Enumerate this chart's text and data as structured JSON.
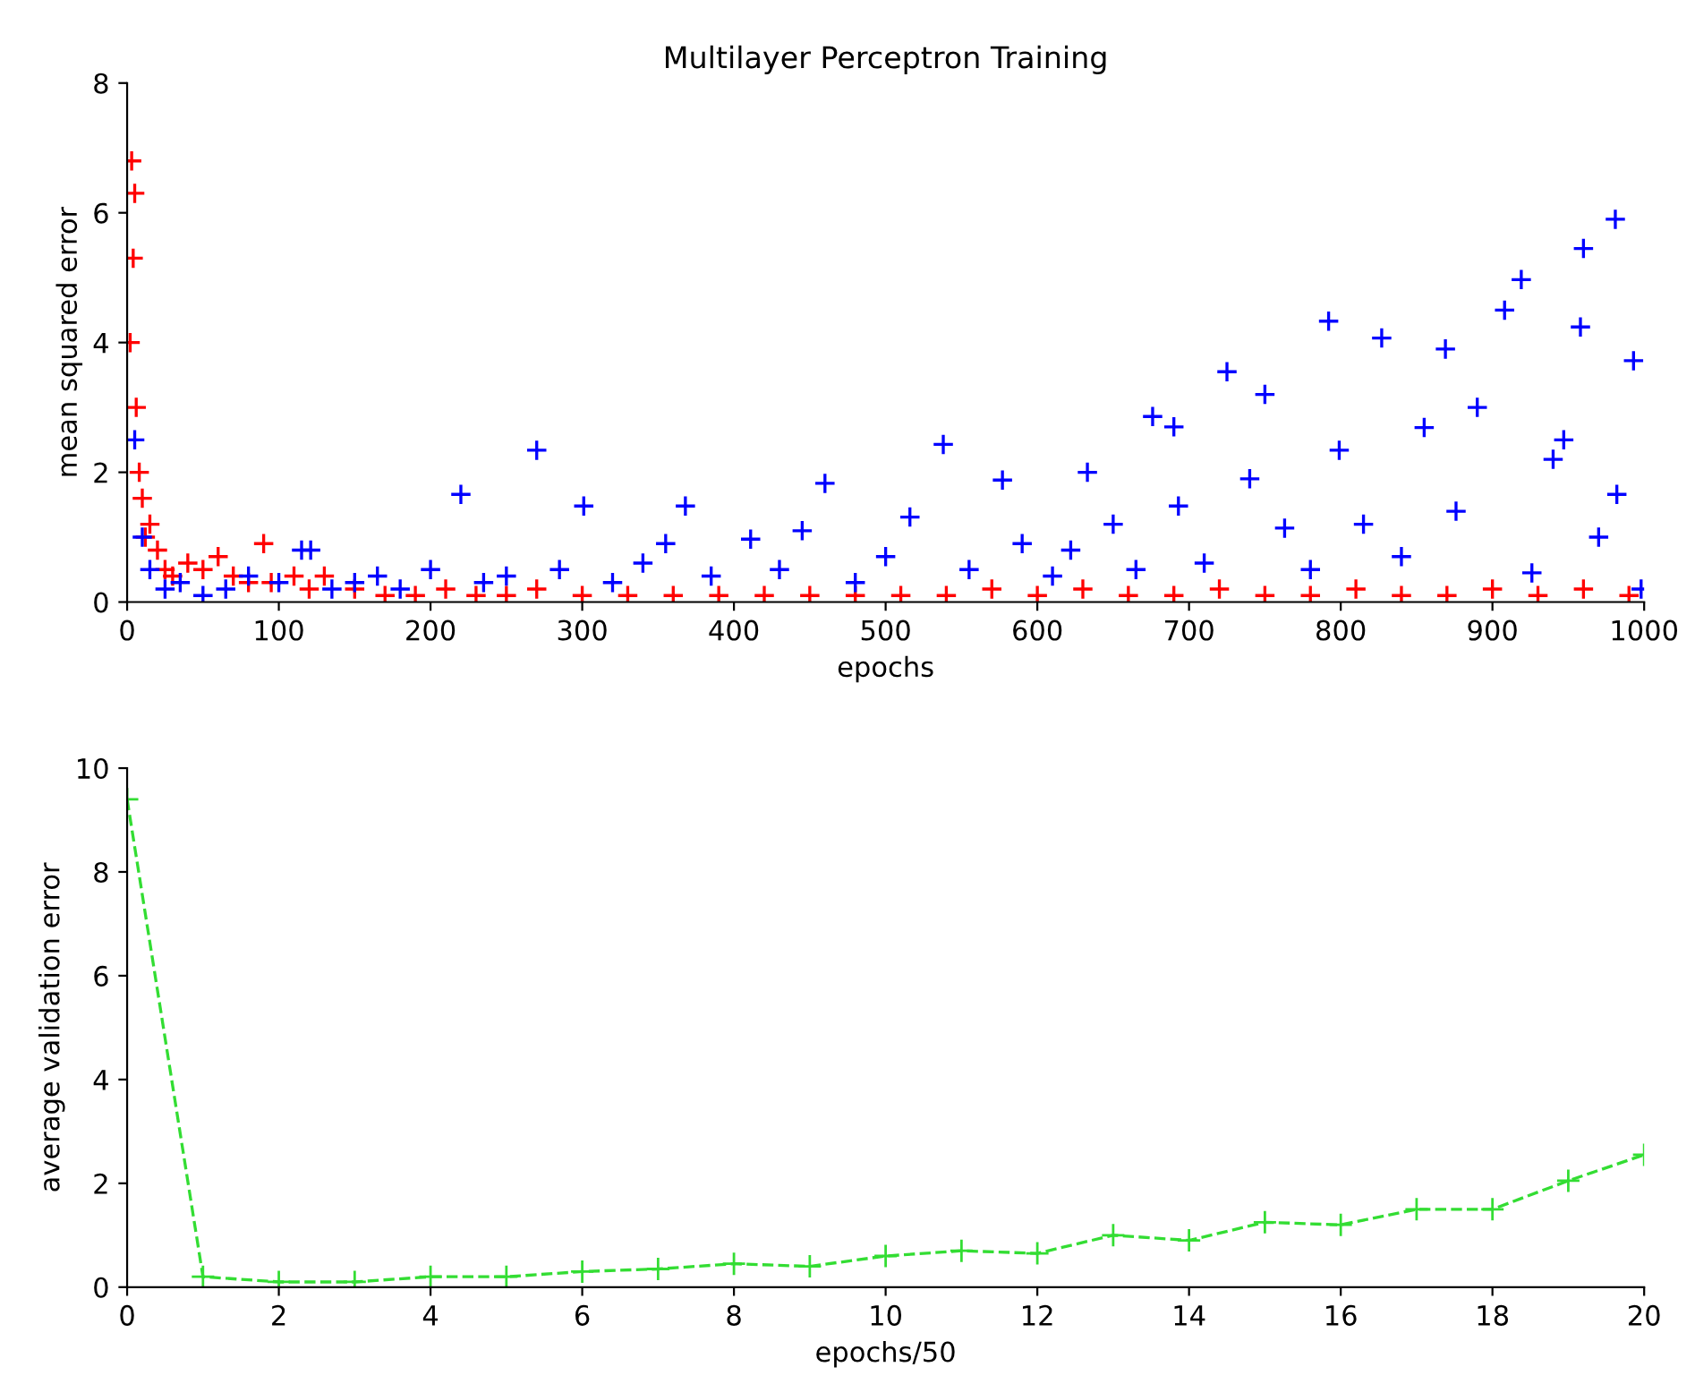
{
  "chart_data": [
    {
      "type": "scatter",
      "title": "Multilayer Perceptron Training",
      "xlabel": "epochs",
      "ylabel": "mean squared error",
      "xlim": [
        0,
        1000
      ],
      "ylim": [
        0,
        8
      ],
      "xticks": [
        0,
        100,
        200,
        300,
        400,
        500,
        600,
        700,
        800,
        900,
        1000
      ],
      "yticks": [
        0,
        2,
        4,
        6,
        8
      ],
      "grid": false,
      "marker": "cross",
      "series": [
        {
          "color": "#ff0000",
          "x": [
            2,
            3,
            4,
            5,
            6,
            8,
            10,
            12,
            15,
            20,
            25,
            30,
            40,
            50,
            60,
            70,
            80,
            90,
            95,
            110,
            120,
            130,
            150,
            170,
            190,
            210,
            230,
            250,
            270,
            300,
            330,
            360,
            390,
            420,
            450,
            480,
            510,
            540,
            570,
            600,
            630,
            660,
            690,
            720,
            750,
            780,
            810,
            840,
            870,
            900,
            930,
            960,
            990
          ],
          "values": [
            4.0,
            6.8,
            5.3,
            6.3,
            3.0,
            2.0,
            1.6,
            1.0,
            1.2,
            0.8,
            0.5,
            0.4,
            0.6,
            0.5,
            0.7,
            0.4,
            0.3,
            0.9,
            0.3,
            0.4,
            0.2,
            0.4,
            0.2,
            0.1,
            0.1,
            0.2,
            0.1,
            0.1,
            0.2,
            0.1,
            0.1,
            0.1,
            0.1,
            0.1,
            0.1,
            0.1,
            0.1,
            0.1,
            0.2,
            0.1,
            0.2,
            0.1,
            0.1,
            0.2,
            0.1,
            0.1,
            0.2,
            0.1,
            0.1,
            0.2,
            0.1,
            0.2,
            0.1
          ]
        },
        {
          "color": "#0000ff",
          "x": [
            5,
            10,
            15,
            25,
            35,
            50,
            65,
            80,
            100,
            115,
            121,
            135,
            150,
            165,
            180,
            200,
            220,
            235,
            250,
            270,
            285,
            301,
            320,
            340,
            355,
            368,
            385,
            411,
            430,
            445,
            460,
            480,
            500,
            516,
            538,
            555,
            577,
            590,
            610,
            622,
            633,
            650,
            665,
            676,
            690,
            693,
            710,
            725,
            740,
            750,
            763,
            780,
            792,
            799,
            815,
            827,
            840,
            855,
            869,
            876,
            890,
            908,
            919,
            926,
            940,
            947,
            958,
            960,
            970,
            981,
            982,
            993,
            998
          ],
          "values": [
            2.5,
            1.0,
            0.5,
            0.2,
            0.3,
            0.1,
            0.2,
            0.4,
            0.3,
            0.8,
            0.8,
            0.2,
            0.3,
            0.4,
            0.2,
            0.5,
            1.66,
            0.3,
            0.4,
            2.34,
            0.5,
            1.48,
            0.3,
            0.6,
            0.9,
            1.48,
            0.4,
            0.97,
            0.5,
            1.1,
            1.83,
            0.3,
            0.7,
            1.31,
            2.43,
            0.5,
            1.88,
            0.9,
            0.4,
            0.8,
            2.0,
            1.2,
            0.5,
            2.86,
            2.7,
            1.48,
            0.6,
            3.55,
            1.9,
            3.2,
            1.14,
            0.5,
            4.33,
            2.34,
            1.2,
            4.07,
            0.7,
            2.69,
            3.9,
            1.4,
            3.0,
            4.5,
            4.97,
            0.45,
            2.2,
            2.5,
            4.24,
            5.45,
            1.0,
            5.9,
            1.66,
            3.72,
            0.2
          ]
        }
      ]
    },
    {
      "type": "line",
      "xlabel": "epochs/50",
      "ylabel": "average validation error",
      "xlim": [
        0,
        20
      ],
      "ylim": [
        0,
        10
      ],
      "xticks": [
        0,
        2,
        4,
        6,
        8,
        10,
        12,
        14,
        16,
        18,
        20
      ],
      "yticks": [
        0,
        2,
        4,
        6,
        8,
        10
      ],
      "grid": false,
      "marker": "cross",
      "line_style": "dashed",
      "series": [
        {
          "color": "#33dd33",
          "x": [
            0,
            1,
            2,
            3,
            4,
            5,
            6,
            7,
            8,
            9,
            10,
            11,
            12,
            13,
            14,
            15,
            16,
            17,
            18,
            19,
            20
          ],
          "values": [
            9.4,
            0.2,
            0.1,
            0.1,
            0.2,
            0.2,
            0.3,
            0.35,
            0.45,
            0.4,
            0.6,
            0.7,
            0.65,
            1.0,
            0.9,
            1.25,
            1.2,
            1.5,
            1.5,
            2.05,
            2.55
          ]
        }
      ]
    }
  ]
}
